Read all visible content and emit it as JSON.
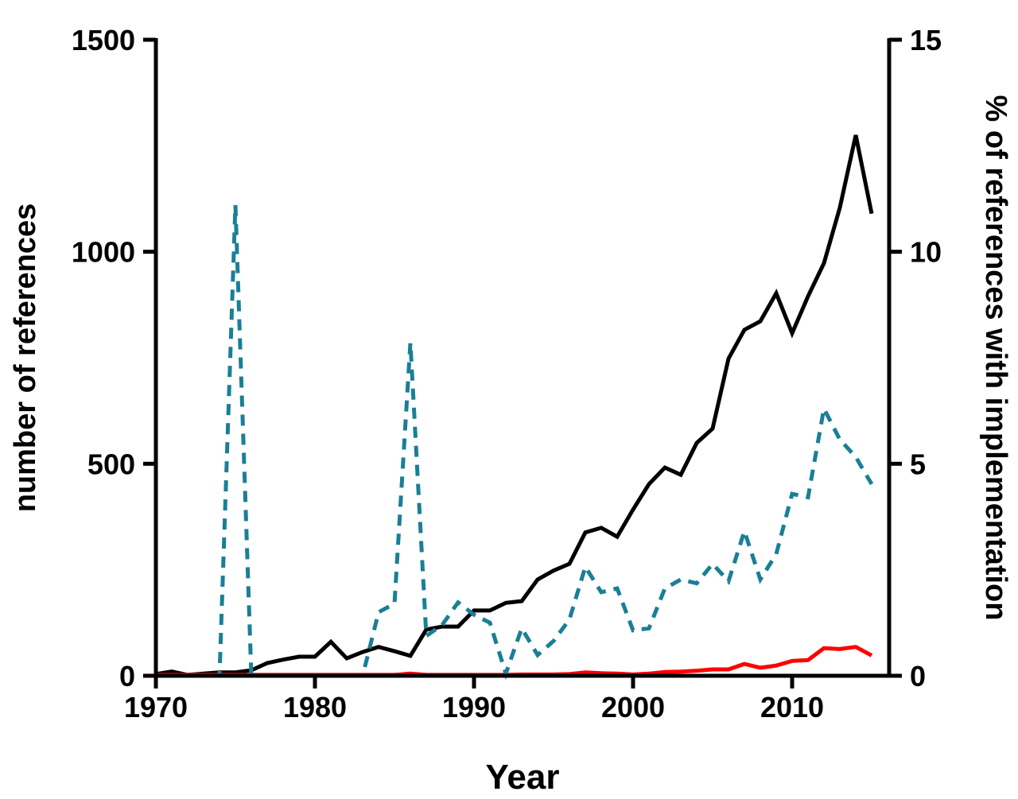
{
  "chart_data": {
    "type": "line",
    "title": "",
    "xlabel": "Year",
    "ylabel": "number of references",
    "ylabel_right": "% of references with implementation",
    "xlim": [
      1970,
      2015
    ],
    "ylim": [
      0,
      1500
    ],
    "ylim_right": [
      0,
      15
    ],
    "x_ticks": [
      "1970",
      "1980",
      "1990",
      "2000",
      "2010"
    ],
    "y_ticks": [
      "0",
      "500",
      "1000",
      "1500"
    ],
    "y_ticks_right": [
      "0",
      "5",
      "10",
      "15"
    ],
    "grid": false,
    "x": [
      1970,
      1971,
      1972,
      1973,
      1974,
      1975,
      1976,
      1977,
      1978,
      1979,
      1980,
      1981,
      1982,
      1983,
      1984,
      1985,
      1986,
      1987,
      1988,
      1989,
      1990,
      1991,
      1992,
      1993,
      1994,
      1995,
      1996,
      1997,
      1998,
      1999,
      2000,
      2001,
      2002,
      2003,
      2004,
      2005,
      2006,
      2007,
      2008,
      2009,
      2010,
      2011,
      2012,
      2013,
      2014,
      2015
    ],
    "series": [
      {
        "axis": "left",
        "color": "#000000",
        "style": "solid",
        "values": [
          4,
          10,
          2,
          5,
          8,
          8,
          13,
          30,
          38,
          45,
          45,
          80,
          41,
          56,
          68,
          58,
          47,
          109,
          116,
          116,
          154,
          154,
          172,
          176,
          227,
          248,
          264,
          338,
          349,
          328,
          392,
          452,
          491,
          474,
          549,
          583,
          748,
          816,
          836,
          902,
          808,
          895,
          973,
          1104,
          1275,
          1090
        ]
      },
      {
        "axis": "left",
        "color": "#ff0000",
        "style": "solid",
        "values": [
          2,
          2,
          2,
          2,
          2,
          2,
          2,
          2,
          2,
          2,
          2,
          2,
          2,
          2,
          2,
          2,
          5,
          2,
          2,
          2,
          2,
          2,
          2,
          3,
          3,
          3,
          4,
          8,
          6,
          5,
          3,
          5,
          9,
          10,
          12,
          15,
          15,
          28,
          19,
          24,
          35,
          37,
          65,
          63,
          68,
          48
        ]
      },
      {
        "axis": "right",
        "color": "#1a7f96",
        "style": "dashed",
        "values": [
          0,
          0,
          0,
          0,
          0,
          11.1,
          0,
          0,
          0,
          0,
          0,
          0,
          0,
          0,
          1.5,
          1.7,
          7.85,
          0.94,
          1.2,
          1.73,
          1.44,
          1.25,
          0.05,
          1.12,
          0.49,
          0.82,
          1.33,
          2.57,
          1.97,
          2.06,
          1.07,
          1.12,
          2.06,
          2.27,
          2.18,
          2.64,
          2.23,
          3.41,
          2.27,
          2.87,
          4.29,
          4.21,
          6.3,
          5.57,
          5.16,
          4.52
        ]
      }
    ]
  }
}
